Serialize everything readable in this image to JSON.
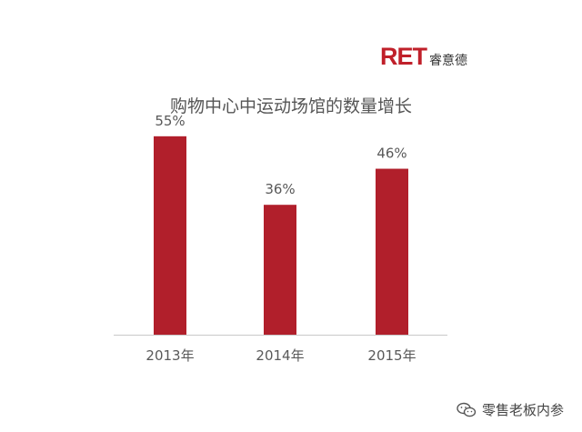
{
  "logo": {
    "mark": "RET",
    "name": "睿意德"
  },
  "watermark": {
    "icon": "wechat-icon",
    "text": "零售老板内参"
  },
  "colors": {
    "bar": "#b11f2b",
    "axis": "#c8c8c8",
    "label": "#595959"
  },
  "chart_data": {
    "type": "bar",
    "title": "购物中心中运动场馆的数量增长",
    "categories": [
      "2013年",
      "2014年",
      "2015年"
    ],
    "values": [
      55,
      36,
      46
    ],
    "value_labels": [
      "55%",
      "36%",
      "46%"
    ],
    "ylim": [
      0,
      60
    ],
    "xlabel": "",
    "ylabel": "",
    "grid": false,
    "legend": "none"
  }
}
